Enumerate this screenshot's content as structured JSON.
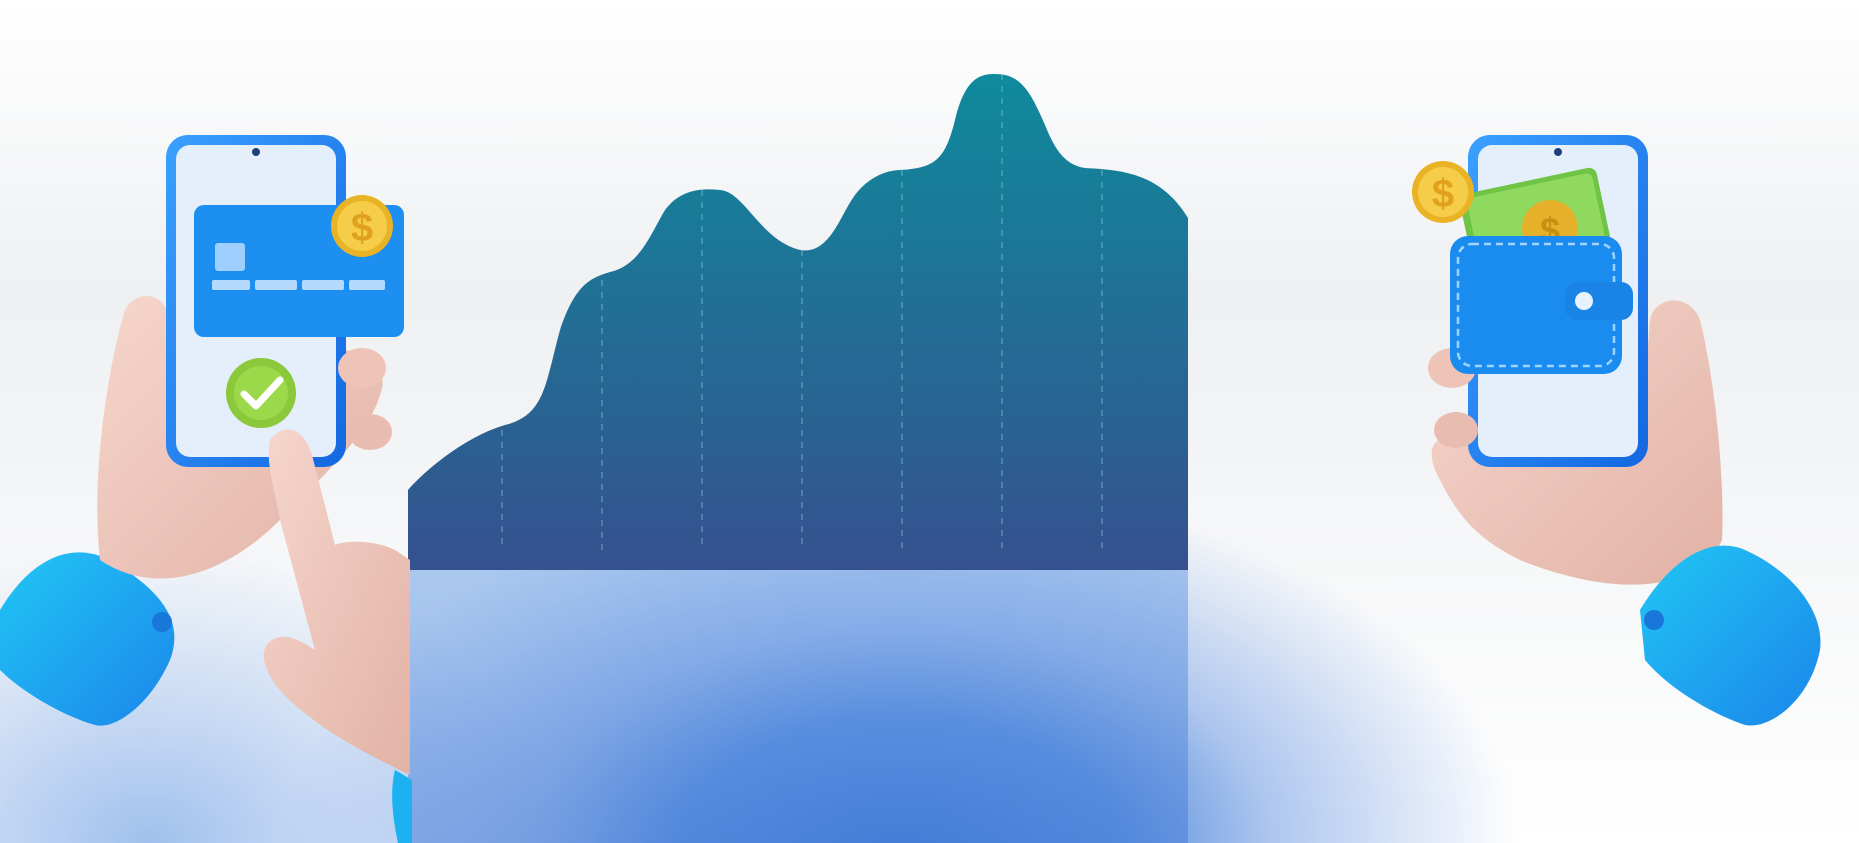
{
  "colors": {
    "chart_top": "#118a9e",
    "chart_bottom": "#33508f",
    "phone_blue": "#1f8cf5",
    "screen": "#e4effb",
    "skin": "#efc7bd",
    "sleeve": "#1cb2f2",
    "coin": "#f3c53a",
    "check": "#8ccb3c",
    "cash": "#7cd152"
  },
  "icons": {
    "left_coin": "dollar-coin-icon",
    "left_check": "checkmark-icon",
    "right_coin": "dollar-coin-icon",
    "wallet": "wallet-icon",
    "card": "credit-card-icon"
  },
  "left_coin_symbol": "$",
  "right_coin_symbol": "$",
  "cash_coin_symbol": "$"
}
